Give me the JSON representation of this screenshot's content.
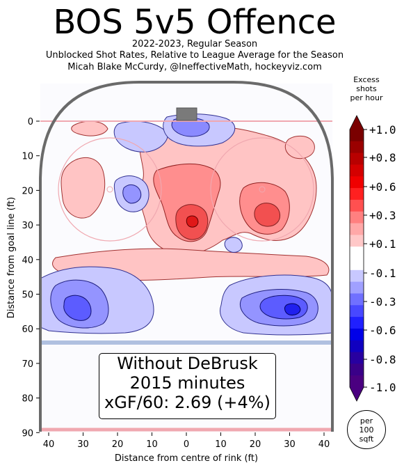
{
  "header": {
    "title": "BOS 5v5 Offence",
    "subtitle_lines": [
      "2022-2023, Regular Season",
      "Unblocked Shot Rates, Relative to League Average for the Season",
      "Micah Blake McCurdy, @IneffectiveMath, hockeyviz.com"
    ]
  },
  "infobox": {
    "line1": "Without DeBrusk",
    "line2": "2015 minutes",
    "line3": "xGF/60: 2.69 (+4%)"
  },
  "legend": {
    "title_lines": [
      "Excess",
      "shots",
      "per hour"
    ],
    "unit_lines": [
      "per",
      "100",
      "sqft"
    ]
  },
  "colors": {
    "positive": "#e0302c",
    "positive_light": "#ffc4c4",
    "negative": "#3434f0",
    "negative_light": "#c8c8ff",
    "rink_outline": "#6a6a6a",
    "goal_line": "#f0a0a8",
    "blue_line": "#b0c0e0"
  },
  "chart_data": {
    "type": "heatmap",
    "x_axis": {
      "label": "Distance from centre of rink (ft)",
      "ticks": [
        40,
        30,
        20,
        10,
        0,
        10,
        20,
        30,
        40
      ],
      "range": [
        -42.5,
        42.5
      ]
    },
    "y_axis": {
      "label": "Distance from goal line (ft)",
      "ticks": [
        0,
        10,
        20,
        30,
        40,
        50,
        60,
        70,
        80,
        90
      ],
      "range": [
        -11,
        90
      ]
    },
    "colorbar": {
      "ticks": [
        "+1.0",
        "+0.8",
        "+0.6",
        "+0.3",
        "+0.1",
        "-0.1",
        "-0.3",
        "-0.6",
        "-0.8",
        "-1.0"
      ],
      "values": [
        1.0,
        0.8,
        0.6,
        0.3,
        0.1,
        -0.1,
        -0.3,
        -0.6,
        -0.8,
        -1.0
      ]
    },
    "hotspots": [
      {
        "x": -2,
        "y": 29,
        "peak": 1.0,
        "sign": "positive"
      },
      {
        "x": 22,
        "y": 27,
        "peak": 0.3,
        "sign": "positive"
      },
      {
        "x": -30,
        "y": 54,
        "peak": -0.6,
        "sign": "negative"
      },
      {
        "x": 31,
        "y": 55,
        "peak": -0.8,
        "sign": "negative"
      },
      {
        "x": -15,
        "y": 22,
        "peak": -0.3,
        "sign": "negative"
      },
      {
        "x": 2,
        "y": 3,
        "peak": -0.3,
        "sign": "negative"
      }
    ]
  }
}
